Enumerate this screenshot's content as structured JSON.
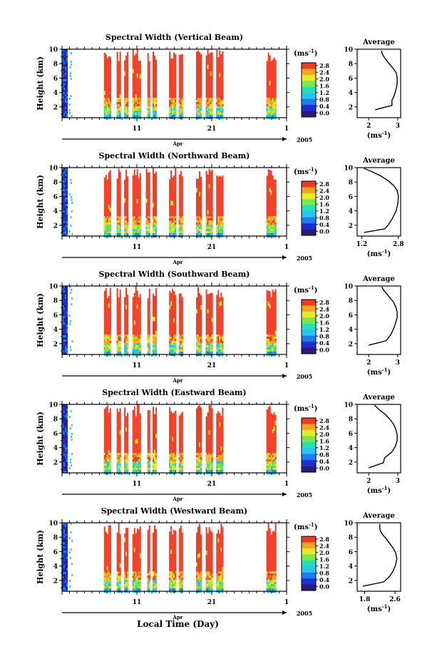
{
  "figure": {
    "xlabel": "Local Time (Day)"
  },
  "colorbar": {
    "unit_base": "(ms",
    "unit_exp": "-1",
    "unit_close": ")",
    "ticks": [
      "0.0",
      "0.4",
      "0.8",
      "1.2",
      "1.6",
      "2.0",
      "2.4",
      "2.8"
    ],
    "colors": [
      "#2b1a7a",
      "#1c2fd2",
      "#1e7cf0",
      "#27c6f0",
      "#23e0b0",
      "#7be84a",
      "#e6ea2a",
      "#f5a422",
      "#ee3a22"
    ]
  },
  "time_axis": {
    "month_label": "Apr",
    "year_label": "2005",
    "tick_labels": [
      "11",
      "21",
      "1"
    ]
  },
  "panels": [
    {
      "title": "Spectral Width (Vertical Beam)",
      "ylabel": "Height (km)",
      "y_ticks": [
        "2",
        "4",
        "6",
        "8",
        "10"
      ],
      "avg_title": "Average",
      "avg_x_ticks": [
        "2",
        "3"
      ],
      "avg_xlabel_base": "(ms",
      "avg_xlabel_exp": "-1",
      "avg_xlabel_close": ")"
    },
    {
      "title": "Spectral Width (Northward Beam)",
      "ylabel": "Height (km)",
      "y_ticks": [
        "2",
        "4",
        "6",
        "8",
        "10"
      ],
      "avg_title": "Average",
      "avg_x_ticks": [
        "1.2",
        "2.8"
      ],
      "avg_xlabel_base": "(ms",
      "avg_xlabel_exp": "-1",
      "avg_xlabel_close": ")"
    },
    {
      "title": "Spectral Width (Southward Beam)",
      "ylabel": "Height (km)",
      "y_ticks": [
        "2",
        "4",
        "6",
        "8",
        "10"
      ],
      "avg_title": "Average",
      "avg_x_ticks": [
        "2",
        "3"
      ],
      "avg_xlabel_base": "(ms",
      "avg_xlabel_exp": "-1",
      "avg_xlabel_close": ")"
    },
    {
      "title": "Spectral Width (Eastward Beam)",
      "ylabel": "Height (km)",
      "y_ticks": [
        "2",
        "4",
        "6",
        "8",
        "10"
      ],
      "avg_title": "Average",
      "avg_x_ticks": [
        "2",
        "3"
      ],
      "avg_xlabel_base": "(ms",
      "avg_xlabel_exp": "-1",
      "avg_xlabel_close": ")"
    },
    {
      "title": "Spectral Width (Westward Beam)",
      "ylabel": "Height (km)",
      "y_ticks": [
        "2",
        "4",
        "6",
        "8",
        "10"
      ],
      "avg_title": "Average",
      "avg_x_ticks": [
        "1.8",
        "2.6"
      ],
      "avg_xlabel_base": "(ms",
      "avg_xlabel_exp": "-1",
      "avg_xlabel_close": ")"
    }
  ],
  "chart_data": [
    {
      "type": "heatmap",
      "title": "Spectral Width (Vertical Beam)",
      "ylabel": "Height (km)",
      "ylim": [
        0.5,
        10
      ],
      "x": "Apr 2005 day of month",
      "xlim": [
        1,
        31
      ],
      "data_day_ranges": [
        [
          6.6,
          7.4
        ],
        [
          8.3,
          8.8
        ],
        [
          9.3,
          9.7
        ],
        [
          10.4,
          11.5
        ],
        [
          12.4,
          12.7
        ],
        [
          13.1,
          13.6
        ],
        [
          15.3,
          16.1
        ],
        [
          16.6,
          17.0
        ],
        [
          18.9,
          19.5
        ],
        [
          20.2,
          21.1
        ],
        [
          21.6,
          22.5
        ],
        [
          28.3,
          29.6
        ]
      ]
    },
    {
      "type": "line",
      "title": "Average",
      "xlabel": "(ms-1)",
      "ylabel": "Height (km)",
      "xlim": [
        1.6,
        3.1
      ],
      "ylim": [
        0.5,
        10
      ],
      "x": [
        2.22,
        2.8,
        2.8,
        2.88,
        2.94,
        2.98,
        2.98,
        2.95,
        2.85,
        2.7,
        2.58,
        2.5,
        2.45,
        2.45
      ],
      "y": [
        1.6,
        2.2,
        2.9,
        3.6,
        4.4,
        5.2,
        6.0,
        6.7,
        7.3,
        8.0,
        8.6,
        9.1,
        9.5,
        9.8
      ]
    },
    {
      "type": "heatmap",
      "title": "Spectral Width (Northward Beam)",
      "ylabel": "Height (km)",
      "ylim": [
        0.5,
        10
      ],
      "x": "Apr 2005 day of month",
      "xlim": [
        1,
        31
      ],
      "data_day_ranges": [
        [
          6.6,
          7.4
        ],
        [
          8.3,
          8.8
        ],
        [
          9.3,
          9.7
        ],
        [
          10.4,
          11.5
        ],
        [
          12.2,
          12.6
        ],
        [
          13.1,
          13.6
        ],
        [
          15.3,
          16.1
        ],
        [
          16.6,
          17.0
        ],
        [
          18.9,
          19.5
        ],
        [
          20.2,
          21.1
        ],
        [
          21.6,
          22.5
        ],
        [
          28.3,
          29.6
        ]
      ]
    },
    {
      "type": "line",
      "title": "Average",
      "xlabel": "(ms-1)",
      "ylabel": "Height (km)",
      "xlim": [
        1.0,
        2.9
      ],
      "ylim": [
        0.5,
        10
      ],
      "x": [
        1.3,
        2.2,
        2.35,
        2.55,
        2.7,
        2.78,
        2.8,
        2.75,
        2.6,
        2.35,
        2.0,
        1.6,
        1.3
      ],
      "y": [
        1.0,
        1.5,
        2.0,
        3.0,
        4.0,
        5.0,
        6.0,
        6.8,
        7.5,
        8.2,
        8.9,
        9.5,
        9.9
      ]
    },
    {
      "type": "heatmap",
      "title": "Spectral Width (Southward Beam)",
      "ylabel": "Height (km)",
      "ylim": [
        0.5,
        10
      ],
      "x": "Apr 2005 day of month",
      "xlim": [
        1,
        31
      ],
      "data_day_ranges": [
        [
          6.6,
          7.4
        ],
        [
          8.3,
          8.8
        ],
        [
          9.3,
          9.7
        ],
        [
          10.4,
          11.5
        ],
        [
          12.4,
          12.7
        ],
        [
          13.1,
          13.6
        ],
        [
          15.3,
          16.1
        ],
        [
          16.6,
          17.0
        ],
        [
          18.9,
          19.5
        ],
        [
          20.2,
          21.1
        ],
        [
          21.6,
          22.5
        ],
        [
          28.3,
          29.6
        ]
      ]
    },
    {
      "type": "line",
      "title": "Average",
      "xlabel": "(ms-1)",
      "ylabel": "Height (km)",
      "xlim": [
        1.6,
        3.1
      ],
      "ylim": [
        0.5,
        10
      ],
      "x": [
        2.0,
        2.6,
        2.75,
        2.85,
        2.92,
        2.98,
        2.98,
        2.93,
        2.85,
        2.72,
        2.6,
        2.5,
        2.45
      ],
      "y": [
        1.8,
        2.4,
        3.2,
        4.0,
        4.8,
        5.6,
        6.4,
        7.1,
        7.8,
        8.4,
        9.0,
        9.5,
        9.9
      ]
    },
    {
      "type": "heatmap",
      "title": "Spectral Width (Eastward Beam)",
      "ylabel": "Height (km)",
      "ylim": [
        0.5,
        10
      ],
      "x": "Apr 2005 day of month",
      "xlim": [
        1,
        31
      ],
      "data_day_ranges": [
        [
          6.6,
          7.4
        ],
        [
          8.3,
          8.8
        ],
        [
          9.3,
          9.7
        ],
        [
          10.4,
          11.5
        ],
        [
          12.4,
          12.7
        ],
        [
          13.1,
          13.6
        ],
        [
          15.3,
          16.1
        ],
        [
          16.6,
          17.0
        ],
        [
          18.9,
          19.5
        ],
        [
          20.2,
          21.1
        ],
        [
          21.6,
          22.5
        ],
        [
          28.3,
          29.6
        ]
      ]
    },
    {
      "type": "line",
      "title": "Average",
      "xlabel": "(ms-1)",
      "ylabel": "Height (km)",
      "xlim": [
        1.6,
        3.1
      ],
      "ylim": [
        0.5,
        10
      ],
      "x": [
        2.0,
        2.5,
        2.55,
        2.8,
        2.92,
        2.98,
        2.98,
        2.93,
        2.85,
        2.72,
        2.55,
        2.35,
        2.2
      ],
      "y": [
        1.2,
        1.9,
        2.6,
        3.4,
        4.2,
        5.0,
        5.8,
        6.6,
        7.3,
        8.0,
        8.7,
        9.3,
        9.9
      ]
    },
    {
      "type": "heatmap",
      "title": "Spectral Width (Westward Beam)",
      "ylabel": "Height (km)",
      "ylim": [
        0.5,
        10
      ],
      "x": "Apr 2005 day of month",
      "xlim": [
        1,
        31
      ],
      "data_day_ranges": [
        [
          6.6,
          7.4
        ],
        [
          8.3,
          8.8
        ],
        [
          9.3,
          9.7
        ],
        [
          10.4,
          11.5
        ],
        [
          12.4,
          12.7
        ],
        [
          13.1,
          13.6
        ],
        [
          15.3,
          16.1
        ],
        [
          16.6,
          17.0
        ],
        [
          18.9,
          19.5
        ],
        [
          20.2,
          21.1
        ],
        [
          21.6,
          22.5
        ],
        [
          28.3,
          29.6
        ]
      ]
    },
    {
      "type": "line",
      "title": "Average",
      "xlabel": "(ms-1)",
      "ylabel": "Height (km)",
      "xlim": [
        1.6,
        2.75
      ],
      "ylim": [
        0.5,
        10
      ],
      "x": [
        1.75,
        2.3,
        2.45,
        2.55,
        2.62,
        2.65,
        2.62,
        2.55,
        2.45,
        2.35,
        2.25,
        2.2,
        2.2
      ],
      "y": [
        1.2,
        1.8,
        2.5,
        3.3,
        4.2,
        5.0,
        5.8,
        6.5,
        7.2,
        7.9,
        8.5,
        9.1,
        9.8
      ]
    }
  ]
}
